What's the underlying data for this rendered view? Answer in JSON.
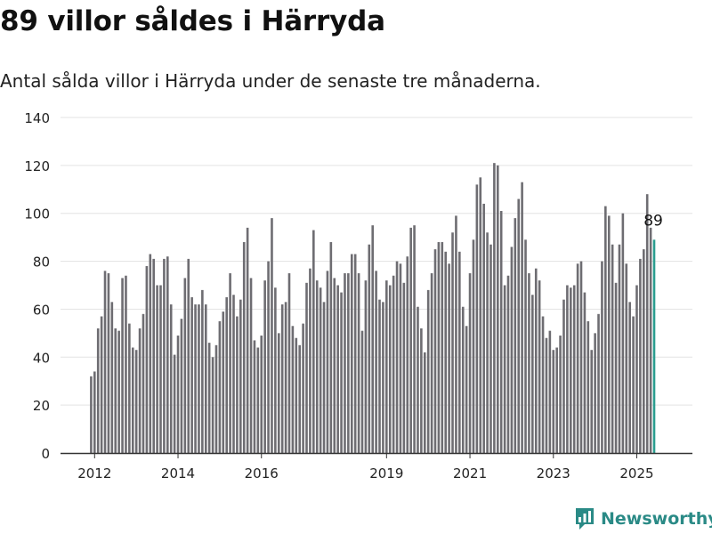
{
  "header": {
    "title": "89 villor såldes i Härryda",
    "subtitle": "Antal sålda villor i Härryda under de senaste tre månaderna."
  },
  "brand": {
    "name": "Newsworthy",
    "icon": "bar-chart-logo-icon",
    "color": "#2a8a86"
  },
  "colors": {
    "bar": "#6e6d72",
    "highlight": "#2a9d8f",
    "grid": "#e3e3e3",
    "axis": "#333333"
  },
  "chart_data": {
    "type": "bar",
    "title": "89 villor såldes i Härryda",
    "subtitle": "Antal sålda villor i Härryda under de senaste tre månaderna.",
    "xlabel": "",
    "ylabel": "",
    "ylim": [
      0,
      140
    ],
    "yticks": [
      0,
      20,
      40,
      60,
      80,
      100,
      120,
      140
    ],
    "xticks": [
      {
        "label": "2012",
        "index": 1
      },
      {
        "label": "2014",
        "index": 25
      },
      {
        "label": "2016",
        "index": 49
      },
      {
        "label": "2019",
        "index": 85
      },
      {
        "label": "2021",
        "index": 109
      },
      {
        "label": "2023",
        "index": 133
      },
      {
        "label": "2025",
        "index": 157
      }
    ],
    "grid": true,
    "series": [
      {
        "values": [
          32,
          34,
          52,
          57,
          76,
          75,
          63,
          52,
          51,
          73,
          74,
          54,
          44,
          43,
          52,
          58,
          78,
          83,
          81,
          70,
          70,
          81,
          82,
          62,
          41,
          49,
          56,
          73,
          81,
          65,
          62,
          62,
          68,
          62,
          46,
          40,
          45,
          55,
          59,
          65,
          75,
          66,
          57,
          64,
          88,
          94,
          73,
          47,
          44,
          49,
          72,
          80,
          98,
          69,
          50,
          62,
          63,
          75,
          53,
          48,
          45,
          54,
          71,
          77,
          93,
          72,
          69,
          63,
          76,
          88,
          73,
          70,
          67,
          75,
          75,
          83,
          83,
          75,
          51,
          72,
          87,
          95,
          76,
          64,
          63,
          72,
          70,
          74,
          80,
          79,
          71,
          82,
          94,
          95,
          61,
          52,
          42,
          68,
          75,
          85,
          88,
          88,
          84,
          79,
          92,
          99,
          84,
          61,
          53,
          75,
          89,
          112,
          115,
          104,
          92,
          87,
          121,
          120,
          101,
          70,
          74,
          86,
          98,
          106,
          113,
          89,
          75,
          66,
          77,
          72,
          57,
          48,
          51,
          43,
          44,
          49,
          64,
          70,
          69,
          70,
          79,
          80,
          67,
          55,
          43,
          50,
          58,
          80,
          103,
          99,
          87,
          71,
          87,
          100,
          79,
          63,
          57,
          70,
          81,
          85,
          108,
          94,
          89
        ]
      }
    ],
    "highlight_last": true,
    "annotation": {
      "text": "89"
    }
  }
}
